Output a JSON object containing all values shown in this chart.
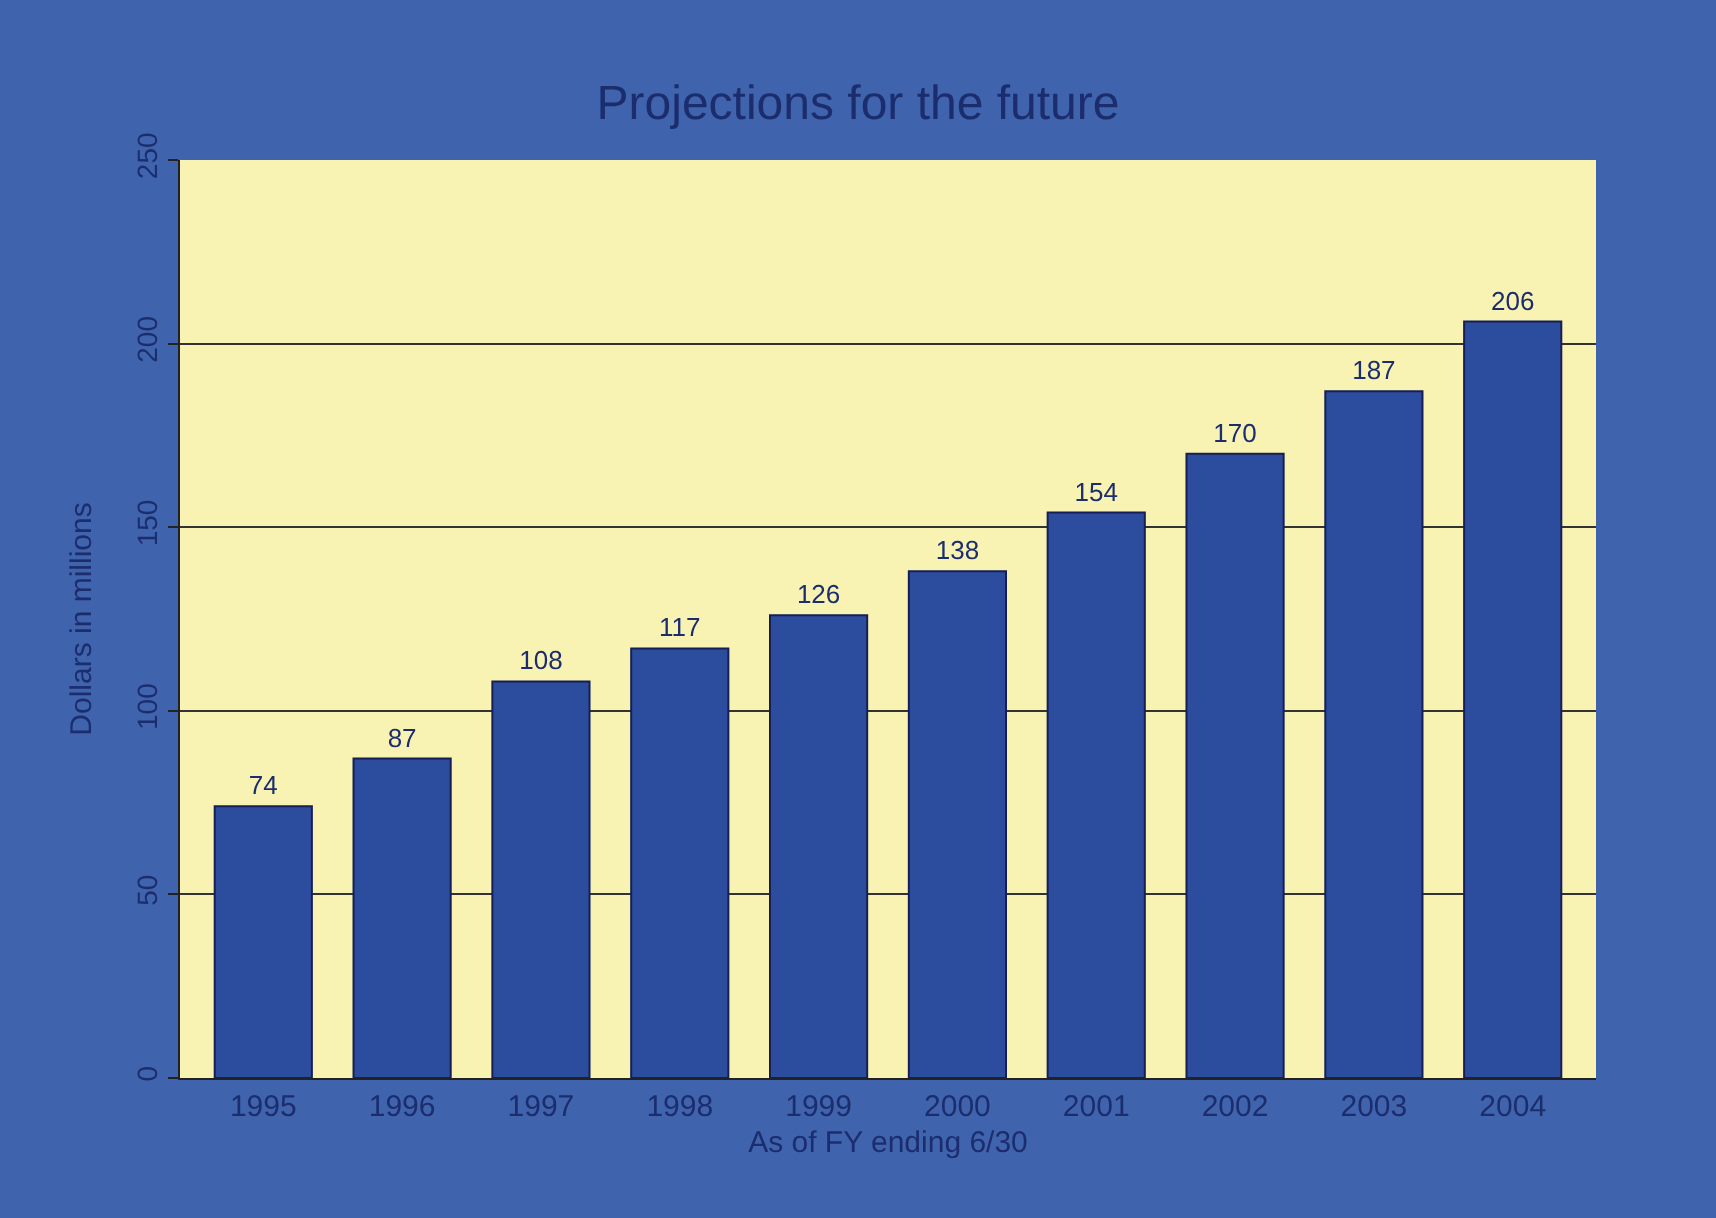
{
  "chart_data": {
    "type": "bar",
    "title": "Projections for the future",
    "xlabel": "As of FY ending 6/30",
    "ylabel": "Dollars in millions",
    "categories": [
      "1995",
      "1996",
      "1997",
      "1998",
      "1999",
      "2000",
      "2001",
      "2002",
      "2003",
      "2004"
    ],
    "values": [
      74,
      87,
      108,
      117,
      126,
      138,
      154,
      170,
      187,
      206
    ],
    "color": "#2c4d9e",
    "ylim": [
      0,
      250
    ],
    "yticks": [
      0,
      50,
      100,
      150,
      200,
      250
    ],
    "grid": "y",
    "data_labels": true
  }
}
